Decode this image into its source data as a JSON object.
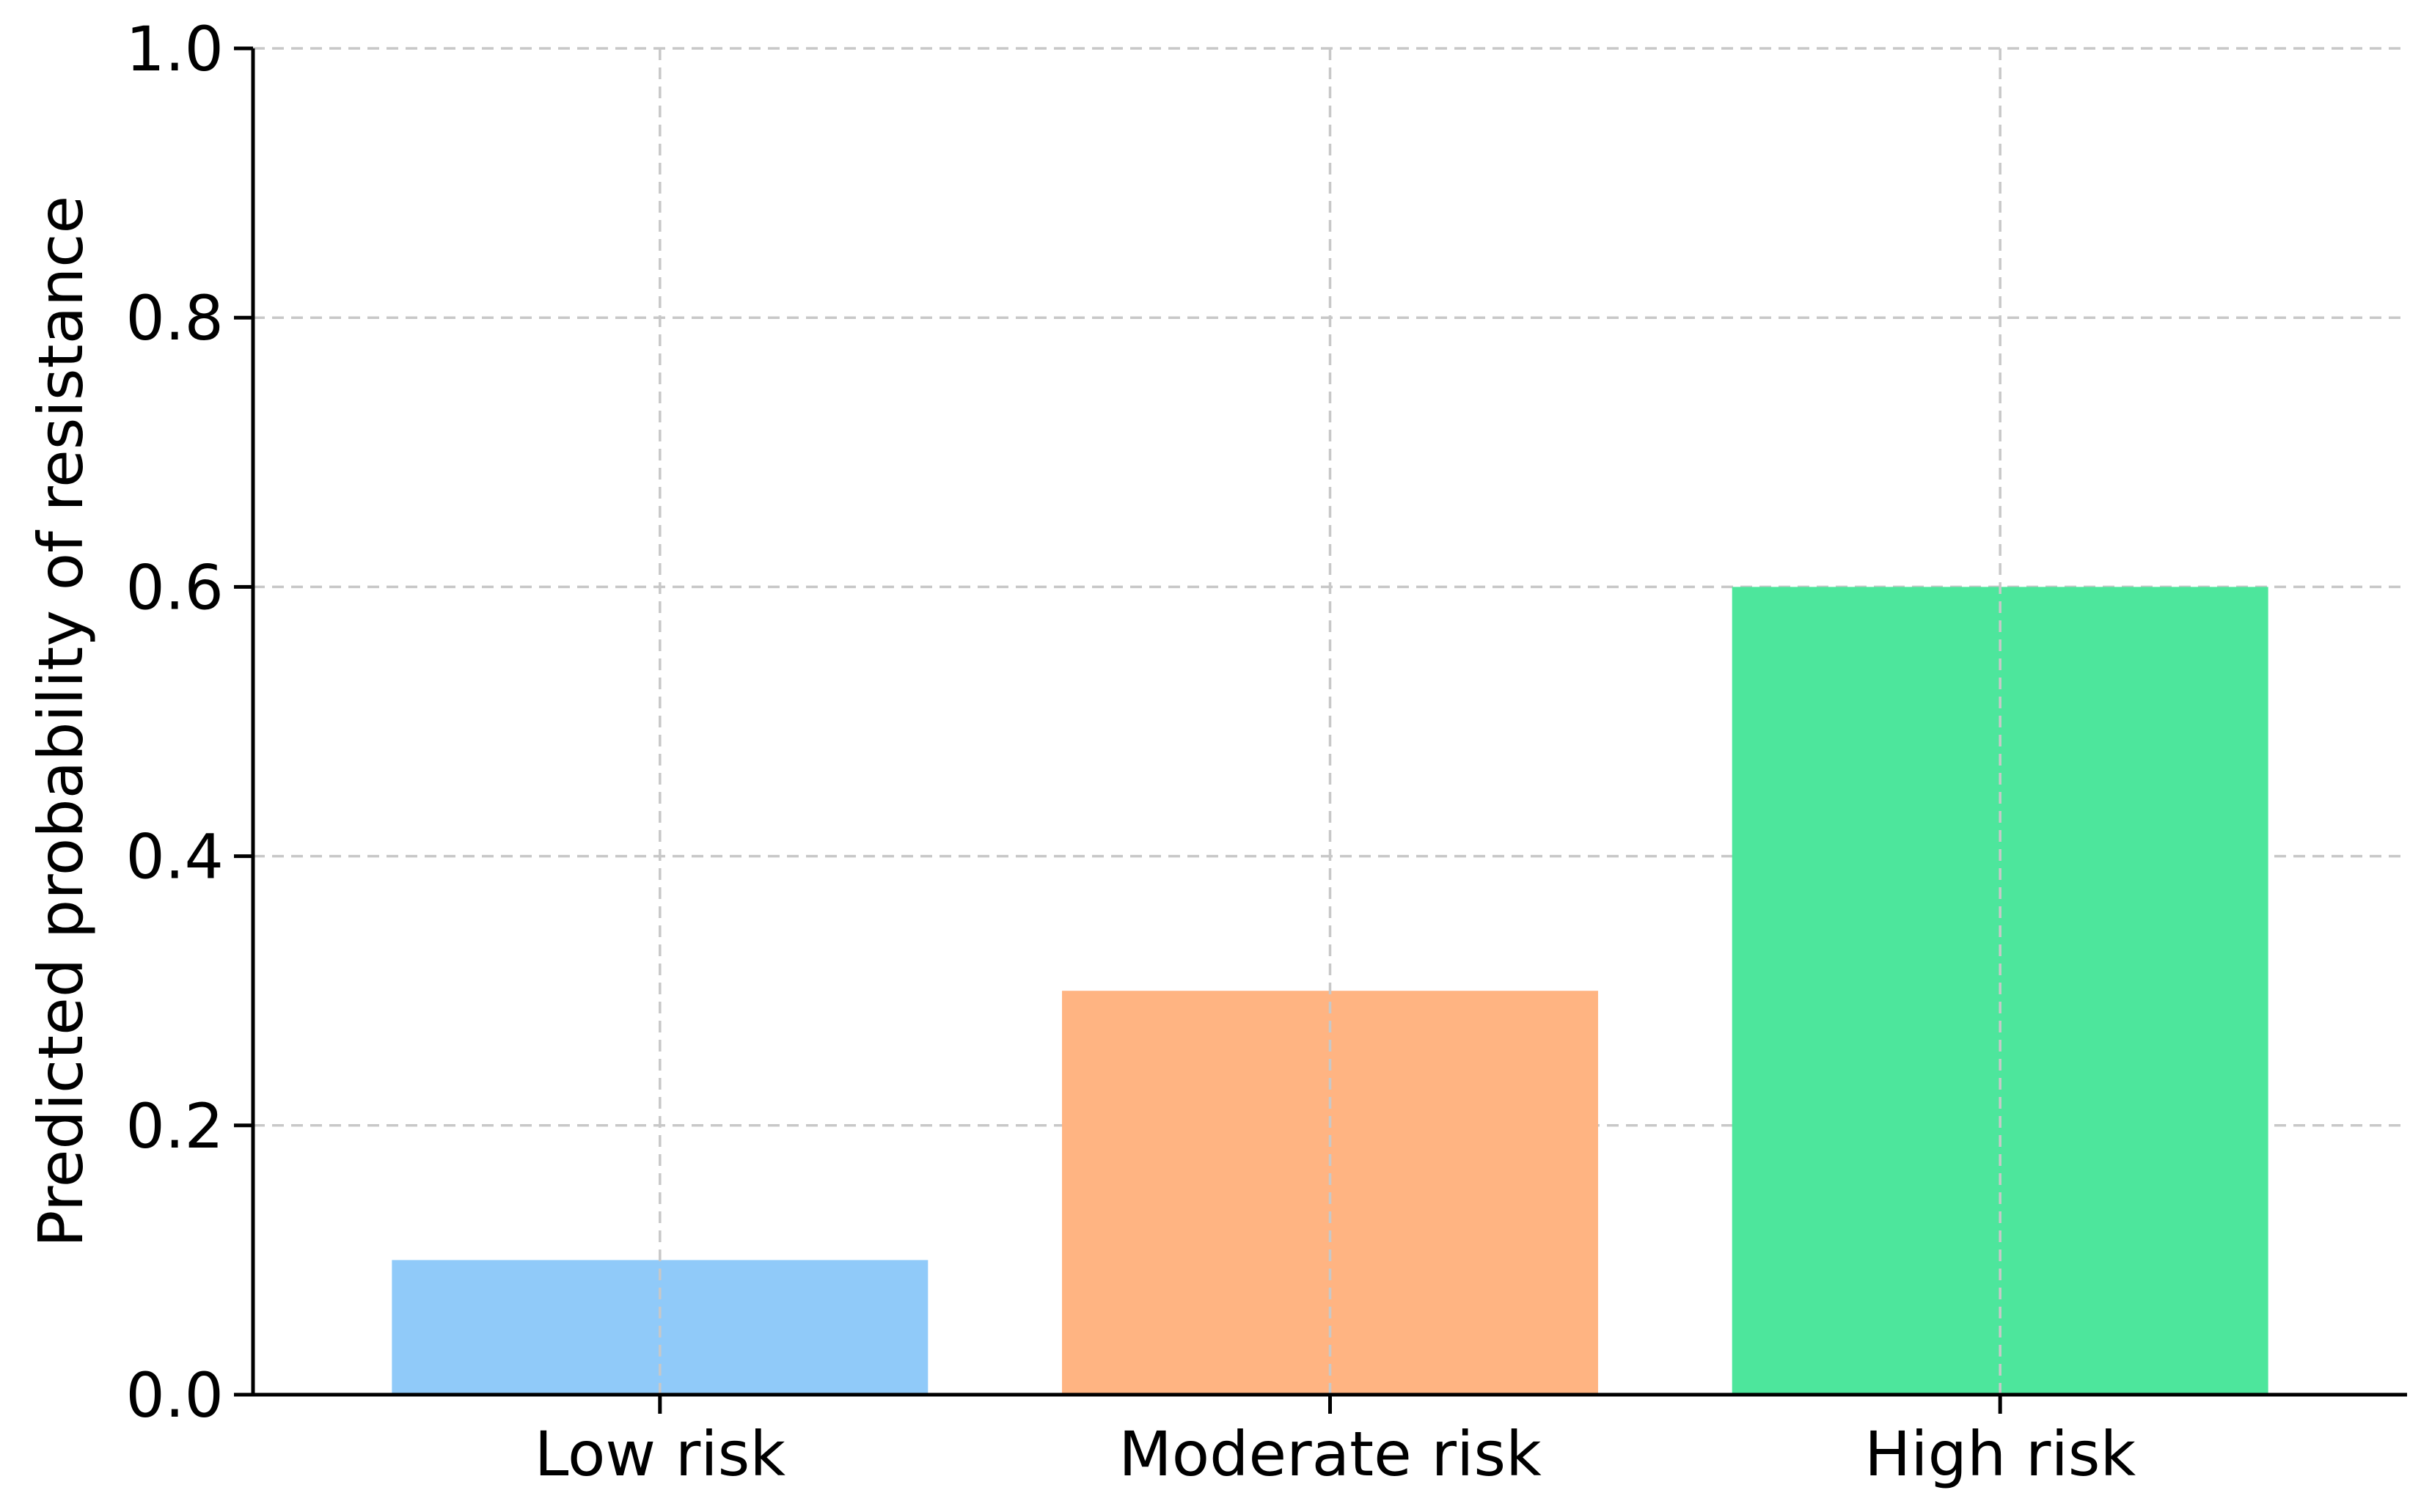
{
  "chart_data": {
    "type": "bar",
    "categories": [
      "Low risk",
      "Moderate risk",
      "High risk"
    ],
    "values": [
      0.1,
      0.3,
      0.6
    ],
    "colors": [
      "#90caf9",
      "#ffb482",
      "#4de69c"
    ],
    "title": "",
    "xlabel": "",
    "ylabel": "Predicted probability of resistance",
    "ylim": [
      0.0,
      1.0
    ],
    "yticks": [
      "0.0",
      "0.2",
      "0.4",
      "0.6",
      "0.8",
      "1.0"
    ],
    "grid": true,
    "grid_style": "dashed"
  }
}
